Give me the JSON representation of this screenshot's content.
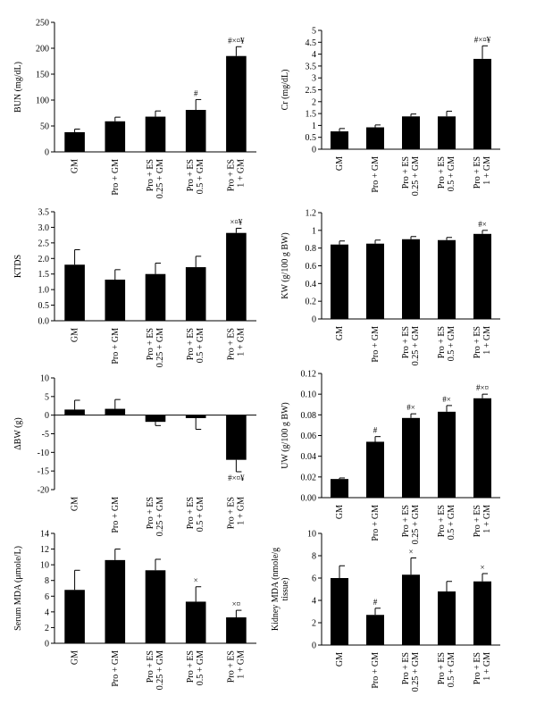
{
  "chart_data": [
    {
      "type": "bar",
      "categories": [
        [
          "GM"
        ],
        [
          "Pro + GM"
        ],
        [
          "Pro + ES",
          "0.25 + GM"
        ],
        [
          "Pro + ES",
          "0.5 + GM"
        ],
        [
          "Pro + ES",
          "1 + GM"
        ]
      ],
      "values": [
        38,
        59,
        68,
        81,
        185
      ],
      "errors": [
        6,
        8,
        11,
        20,
        18
      ],
      "annotations": [
        "",
        "",
        "",
        "#",
        "#×¤¥"
      ],
      "ylabel": "BUN (mg/dL)",
      "ylim": [
        0,
        250
      ],
      "yticks": [
        0,
        50,
        100,
        150,
        200,
        250
      ],
      "tick_decimals": 0,
      "grid": false
    },
    {
      "type": "bar",
      "categories": [
        [
          "GM"
        ],
        [
          "Pro + GM"
        ],
        [
          "Pro + ES",
          "0.25 + GM"
        ],
        [
          "Pro + ES",
          "0.5 + GM"
        ],
        [
          "Pro + ES",
          "1 + GM"
        ]
      ],
      "values": [
        0.75,
        0.92,
        1.38,
        1.38,
        3.8
      ],
      "errors": [
        0.12,
        0.1,
        0.1,
        0.22,
        0.55
      ],
      "annotations": [
        "",
        "",
        "",
        "",
        "#×¤¥"
      ],
      "ylabel": "Cr (mg/dL)",
      "ylim": [
        0,
        5
      ],
      "yticks": [
        0,
        0.5,
        1,
        1.5,
        2,
        2.5,
        3,
        3.5,
        4,
        4.5,
        5
      ],
      "tick_decimals": -1,
      "grid": false
    },
    {
      "type": "bar",
      "categories": [
        [
          "GM"
        ],
        [
          "Pro + GM"
        ],
        [
          "Pro + ES",
          "0.25 + GM"
        ],
        [
          "Pro + ES",
          "0.5 + GM"
        ],
        [
          "Pro + ES",
          "1 + GM"
        ]
      ],
      "values": [
        1.8,
        1.32,
        1.5,
        1.72,
        2.82
      ],
      "errors": [
        0.48,
        0.32,
        0.35,
        0.35,
        0.15
      ],
      "annotations": [
        "",
        "",
        "",
        "",
        "×¤¥"
      ],
      "ylabel": "KTDS",
      "ylim": [
        0,
        3.5
      ],
      "yticks": [
        0,
        0.5,
        1,
        1.5,
        2,
        2.5,
        3,
        3.5
      ],
      "tick_decimals": 1,
      "grid": false
    },
    {
      "type": "bar",
      "categories": [
        [
          "GM"
        ],
        [
          "Pro + GM"
        ],
        [
          "Pro + ES",
          "0.25 + GM"
        ],
        [
          "Pro + ES",
          "0.5 + GM"
        ],
        [
          "Pro + ES",
          "1 + GM"
        ]
      ],
      "values": [
        0.84,
        0.85,
        0.9,
        0.89,
        0.96
      ],
      "errors": [
        0.04,
        0.04,
        0.03,
        0.03,
        0.04
      ],
      "annotations": [
        "",
        "",
        "",
        "",
        "#×"
      ],
      "ylabel": "KW (g/100 g BW)",
      "ylim": [
        0,
        1.2
      ],
      "yticks": [
        0,
        0.2,
        0.4,
        0.6,
        0.8,
        1,
        1.2
      ],
      "tick_decimals": -1,
      "grid": false
    },
    {
      "type": "bar",
      "categories": [
        [
          "GM"
        ],
        [
          "Pro + GM"
        ],
        [
          "Pro + ES",
          "0.25 + GM"
        ],
        [
          "Pro + ES",
          "0.5 + GM"
        ],
        [
          "Pro + ES",
          "1 + GM"
        ]
      ],
      "values": [
        1.5,
        1.7,
        -1.8,
        -0.8,
        -12
      ],
      "errors": [
        2.5,
        2.5,
        1.0,
        3.0,
        3.2
      ],
      "annotations": [
        "",
        "",
        "",
        "",
        "#×¤¥"
      ],
      "ylabel": "ΔBW (g)",
      "ylim": [
        -20,
        10
      ],
      "yticks": [
        -20,
        -15,
        -10,
        -5,
        0,
        5,
        10
      ],
      "tick_decimals": 0,
      "grid": false
    },
    {
      "type": "bar",
      "categories": [
        [
          "GM"
        ],
        [
          "Pro + GM"
        ],
        [
          "Pro + ES",
          "0.25 + GM"
        ],
        [
          "Pro + ES",
          "0.5 + GM"
        ],
        [
          "Pro + ES",
          "1 + GM"
        ]
      ],
      "values": [
        0.018,
        0.054,
        0.077,
        0.083,
        0.096
      ],
      "errors": [
        0.001,
        0.005,
        0.004,
        0.006,
        0.004
      ],
      "annotations": [
        "",
        "#",
        "#×",
        "#×",
        "#×¤"
      ],
      "ylabel": "UW (g/100 g BW)",
      "ylim": [
        0,
        0.12
      ],
      "yticks": [
        0,
        0.02,
        0.04,
        0.06,
        0.08,
        0.1,
        0.12
      ],
      "tick_decimals": 2,
      "grid": false
    },
    {
      "type": "bar",
      "categories": [
        [
          "GM"
        ],
        [
          "Pro + GM"
        ],
        [
          "Pro + ES",
          "0.25 + GM"
        ],
        [
          "Pro + ES",
          "0.5 + GM"
        ],
        [
          "Pro + ES",
          "1 + GM"
        ]
      ],
      "values": [
        6.8,
        10.6,
        9.3,
        5.3,
        3.3
      ],
      "errors": [
        2.5,
        1.4,
        1.4,
        1.9,
        0.9
      ],
      "annotations": [
        "",
        "",
        "",
        "×",
        "×¤"
      ],
      "ylabel": "Serum MDA (μmole/L)",
      "ylim": [
        0,
        14
      ],
      "yticks": [
        0,
        2,
        4,
        6,
        8,
        10,
        12,
        14
      ],
      "tick_decimals": 0,
      "grid": false
    },
    {
      "type": "bar",
      "categories": [
        [
          "GM"
        ],
        [
          "Pro + GM"
        ],
        [
          "Pro + ES",
          "0.25 + GM"
        ],
        [
          "Pro + ES",
          "0.5 + GM"
        ],
        [
          "Pro + ES",
          "1 + GM"
        ]
      ],
      "values": [
        6.0,
        2.7,
        6.3,
        4.8,
        5.7
      ],
      "errors": [
        1.1,
        0.6,
        1.5,
        0.9,
        0.7
      ],
      "annotations": [
        "",
        "#",
        "×",
        "",
        "×"
      ],
      "ylabel": "Kidney MDA (nmole/g tissue)",
      "ylabel_lines": [
        "Kidney MDA (nmole/g",
        "tissue)"
      ],
      "ylim": [
        0,
        10
      ],
      "yticks": [
        0,
        2,
        4,
        6,
        8,
        10
      ],
      "tick_decimals": 0,
      "grid": false
    }
  ]
}
